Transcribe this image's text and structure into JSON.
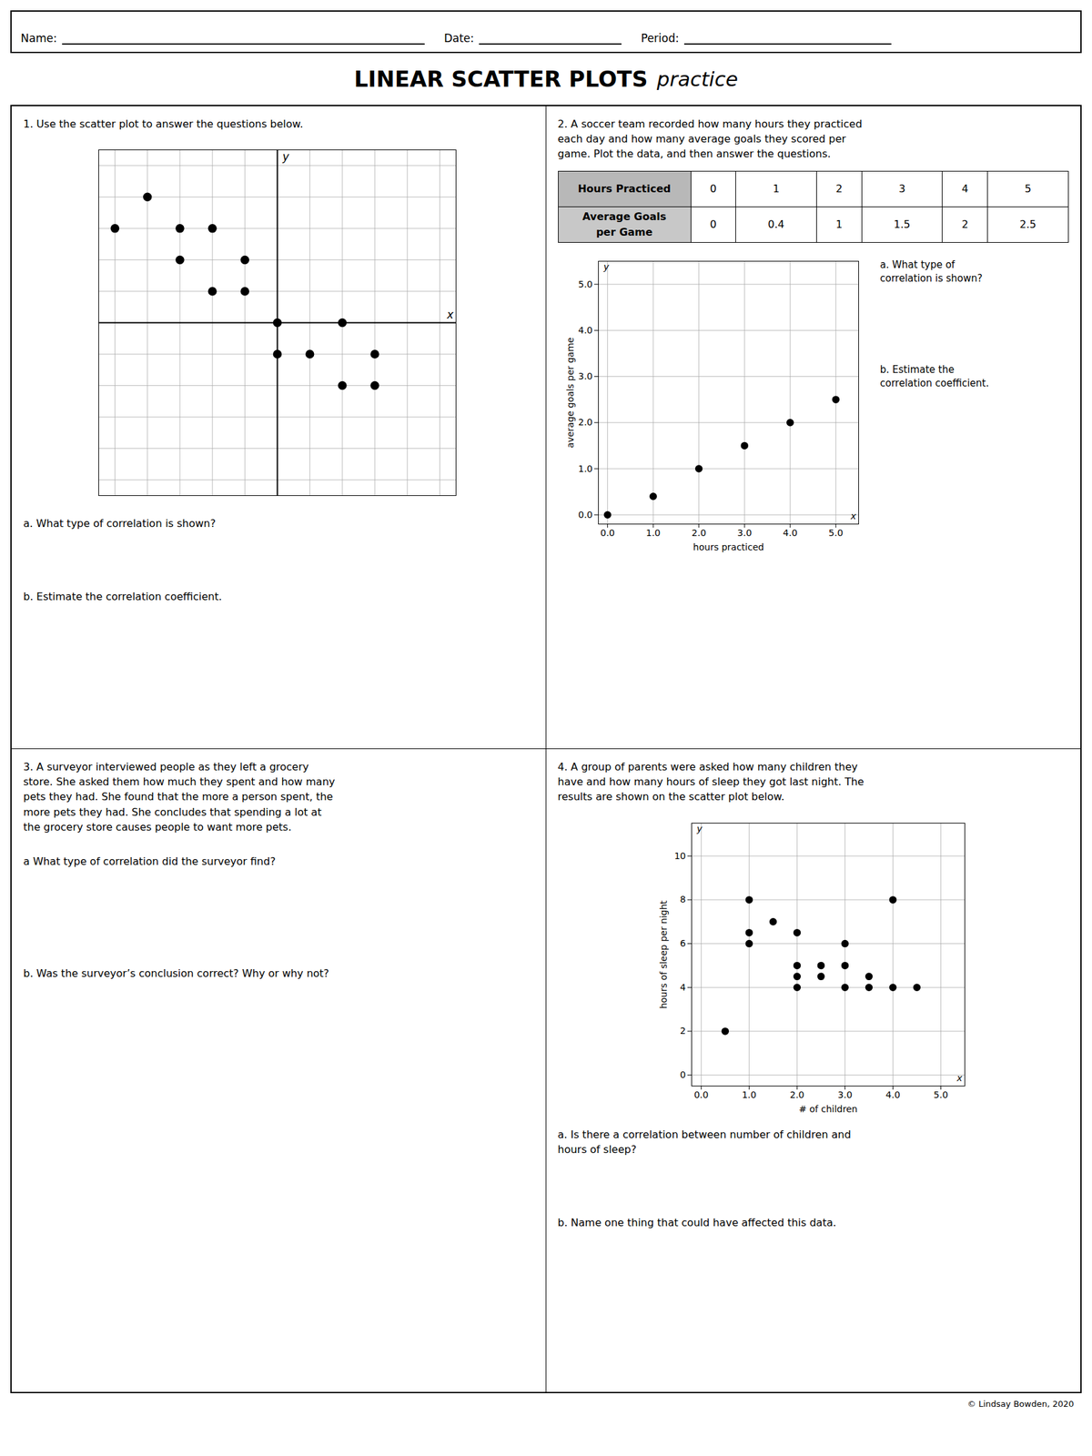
{
  "title": "LINEAR SCATTER PLOTS",
  "subtitle": "practice",
  "annotations": [
    "Name:",
    "Date:",
    "Period:",
    "3. A surveyor interviewed people as they left a grocery\nstore. She asked them how much they spent and how many\npets they had. She found that the more a person spent, the\nmore pets they had. She concludes that spending a lot at\nthe grocery store causes people to want more pets.",
    "a What type of correlation did the surveyor find?",
    "b. Was the surveyor’s conclusion correct? Why or why not?",
    "© Lindsay Bowden, 2020"
  ],
  "chart_data": [
    {
      "type": "scatter",
      "title": "1. Use the scatter plot to answer the questions below.",
      "annotations": [
        "x",
        "y",
        "a. What type of correlation is shown?",
        "b. Estimate the correlation coefficient."
      ],
      "x": [
        -5,
        -4,
        -3,
        -3,
        -2,
        -2,
        -1,
        -1,
        0,
        0,
        1,
        2,
        2,
        3,
        3
      ],
      "values": [
        3,
        4,
        2,
        3,
        1,
        3,
        1,
        2,
        0,
        -1,
        -1,
        -2,
        0,
        -2,
        -1
      ],
      "color": "black",
      "xlim": [
        -5.5,
        5.5
      ],
      "ylim": [
        -5.5,
        5.5
      ],
      "xticks": [
        -5,
        -4,
        -3,
        -2,
        -1,
        0,
        1,
        2,
        3,
        4,
        5
      ],
      "yticks": [
        -5,
        -4,
        -3,
        -2,
        -1,
        0,
        1,
        2,
        3,
        4,
        5
      ],
      "grid": true,
      "tick_labels": false
    },
    {
      "type": "scatter",
      "title": "2.  A soccer team recorded how many hours they practiced\neach day and how many average goals they scored per\ngame. Plot the data, and then answer the questions.",
      "annotations": [
        "x",
        "y",
        "Hours Practiced",
        "Average Goals\nper Game",
        "a. What type of\ncorrelation is shown?",
        "b. Estimate the\ncorrelation coefficient."
      ],
      "x": [
        0,
        1,
        2,
        3,
        4,
        5
      ],
      "values": [
        0,
        0.4,
        1,
        1.5,
        2,
        2.5
      ],
      "color": "black",
      "xlabel": "hours practiced",
      "ylabel": "average goals per game",
      "xlim": [
        -0.2,
        5.5
      ],
      "ylim": [
        -0.2,
        5.5
      ],
      "xticks": [
        0,
        1,
        2,
        3,
        4,
        5
      ],
      "yticks": [
        0,
        1,
        2,
        3,
        4,
        5
      ],
      "grid": true
    },
    {
      "type": "scatter",
      "title": "4. A group of parents were asked how many children they\nhave and how many hours of sleep they got last night. The\nresults are shown on the scatter plot below.",
      "annotations": [
        "x",
        "y",
        "a. Is there a correlation between number of children and\nhours of sleep?",
        "b. Name one thing that could have affected this data."
      ],
      "x": [
        0.5,
        1,
        1,
        1,
        1.5,
        2,
        2,
        2,
        2,
        2.5,
        2.5,
        3,
        3,
        3,
        3.5,
        3.5,
        4,
        4,
        4.5
      ],
      "values": [
        2,
        8,
        6.5,
        6,
        7,
        6.5,
        5,
        4.5,
        4,
        5,
        4.5,
        6,
        5,
        4,
        4.5,
        4,
        4,
        8,
        4
      ],
      "color": "black",
      "xlabel": "# of children",
      "ylabel": "hours of sleep per night",
      "xlim": [
        -0.2,
        5.5
      ],
      "ylim": [
        -0.5,
        11.5
      ],
      "xticks": [
        0,
        1,
        2,
        3,
        4,
        5
      ],
      "yticks": [
        0,
        2,
        4,
        6,
        8,
        10
      ],
      "grid": true
    }
  ]
}
